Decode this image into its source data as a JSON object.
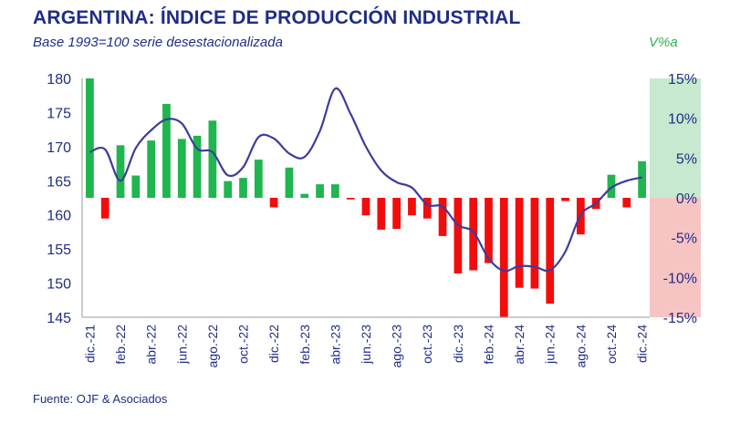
{
  "header": {
    "title": "ARGENTINA: ÍNDICE DE PRODUCCIÓN INDUSTRIAL",
    "subtitle": "Base 1993=100 serie desestacionalizada",
    "right_axis_label": "V%a"
  },
  "footer": {
    "source": "Fuente: OJF & Asociados"
  },
  "colors": {
    "line": "#3d3c9c",
    "bar_positive": "#1fb54f",
    "bar_negative": "#f20d0d",
    "band_positive": "#c6e9cf",
    "band_negative": "#f7c4c4",
    "axis_text": "#1f2d86"
  },
  "chart_data": {
    "type": "bar+line",
    "left_axis": {
      "ylim": [
        145,
        180
      ],
      "ticks": [
        145,
        150,
        155,
        160,
        165,
        170,
        175,
        180
      ]
    },
    "right_axis": {
      "label": "V%a",
      "ylim": [
        -15,
        15
      ],
      "ticks": [
        -15,
        -10,
        -5,
        0,
        5,
        10,
        15
      ],
      "tick_labels": [
        "-15%",
        "-10%",
        "-5%",
        "0%",
        "5%",
        "10%",
        "15%"
      ]
    },
    "x": [
      "dic.-21",
      "ene.-22",
      "feb.-22",
      "mar.-22",
      "abr.-22",
      "may.-22",
      "jun.-22",
      "jul.-22",
      "ago.-22",
      "sep.-22",
      "oct.-22",
      "nov.-22",
      "dic.-22",
      "ene.-23",
      "feb.-23",
      "mar.-23",
      "abr.-23",
      "may.-23",
      "jun.-23",
      "jul.-23",
      "ago.-23",
      "sep.-23",
      "oct.-23",
      "nov.-23",
      "dic.-23",
      "ene.-24",
      "feb.-24",
      "mar.-24",
      "abr.-24",
      "may.-24",
      "jun.-24",
      "jul.-24",
      "ago.-24",
      "sep.-24",
      "oct.-24",
      "nov.-24",
      "dic.-24"
    ],
    "x_tick_labels": [
      "dic.-21",
      "feb.-22",
      "abr.-22",
      "jun.-22",
      "ago.-22",
      "oct.-22",
      "dic.-22",
      "feb.-23",
      "abr.-23",
      "jun.-23",
      "ago.-23",
      "oct.-23",
      "dic.-23",
      "feb.-24",
      "abr.-24",
      "jun.-24",
      "ago.-24",
      "oct.-24",
      "dic.-24"
    ],
    "series": [
      {
        "type": "line",
        "axis": "left",
        "values": [
          169.2,
          169.6,
          165.0,
          169.8,
          172.4,
          174.0,
          173.4,
          169.7,
          169.2,
          165.8,
          167.0,
          171.4,
          171.2,
          169.0,
          168.5,
          172.3,
          178.5,
          174.8,
          170.0,
          166.5,
          164.8,
          164.0,
          161.5,
          161.2,
          158.5,
          157.5,
          153.6,
          151.8,
          152.5,
          152.4,
          151.9,
          154.6,
          160.0,
          161.7,
          164.0,
          165.0,
          165.5
        ]
      },
      {
        "type": "bar",
        "axis": "right",
        "values": [
          15.0,
          -2.6,
          6.6,
          2.8,
          7.2,
          11.8,
          7.4,
          7.8,
          9.7,
          2.1,
          2.5,
          4.8,
          -1.2,
          3.8,
          0.5,
          1.7,
          1.7,
          -0.2,
          -2.2,
          -4.0,
          -3.9,
          -2.2,
          -2.6,
          -4.8,
          -9.5,
          -9.1,
          -8.2,
          -15.0,
          -11.3,
          -11.4,
          -13.3,
          -0.4,
          -4.6,
          -1.4,
          2.9,
          -1.2,
          4.6
        ]
      }
    ]
  }
}
